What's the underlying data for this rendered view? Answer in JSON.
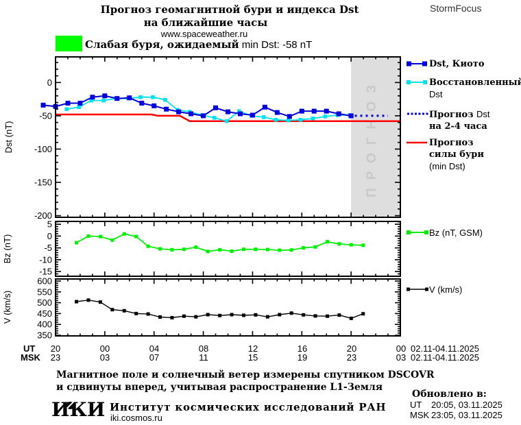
{
  "header": {
    "title_line1": "Прогноз геомагнитной бури и индекса Dst",
    "title_line2": "на ближайшие часы",
    "website": "www.spaceweather.ru",
    "brand": "StormFocus"
  },
  "storm_banner": {
    "level_text": "Слабая буря, ожидаемый",
    "detail_text": " min Dst: -58 nT",
    "color": "#00ff00"
  },
  "forecast_overlay": {
    "label": "ПРОГНОЗ",
    "bg": "#dedede",
    "text_color": "#c9c9c9"
  },
  "xaxis": {
    "ut_label": "UT",
    "msk_label": "MSK",
    "ut_ticks": [
      "20",
      "00",
      "04",
      "08",
      "12",
      "16",
      "20",
      "00"
    ],
    "msk_ticks": [
      "23",
      "03",
      "07",
      "11",
      "15",
      "19",
      "23",
      "03"
    ],
    "date_range_ut": "02.11-04.11.2025",
    "date_range_msk": "02.11-04.11.2025"
  },
  "legends": {
    "dst": [
      {
        "line1": "Dst, Киото",
        "color": "#0000dd",
        "style": "squares"
      },
      {
        "line1": "Восстановленный",
        "line2": "Dst",
        "color": "#00e0ee",
        "style": "squares"
      },
      {
        "line1_cyr": "Прогноз ",
        "line1_lat": "Dst",
        "line2": "на 2-4 часа",
        "color": "#0000dd",
        "style": "dotted"
      },
      {
        "line1": "Прогноз",
        "line2": "силы бури",
        "line3": "(min Dst)",
        "color": "#ff0000",
        "style": "line"
      }
    ],
    "bz": {
      "label": "Bz (nT, GSM)",
      "color": "#00ee00"
    },
    "v": {
      "label": "V (km/s)",
      "color": "#000000"
    }
  },
  "footer": {
    "note_line1": "Магнитное поле и солнечный ветер измерены спутником DSCOVR",
    "note_line2": "и сдвинуты вперед, учитывая распространение L1-Земля",
    "iki_logo": "ИКИ",
    "institute": "Институт космических исследований РАН",
    "site": "iki.cosmos.ru",
    "updated_header": "Обновлено в:",
    "updated_ut_label": "UT",
    "updated_ut_value": "20:05, 03.11.2025",
    "updated_msk_label": "MSK",
    "updated_msk_value": "23:05, 03.11.2025"
  },
  "chart_data": [
    {
      "id": "dst",
      "type": "line",
      "ylabel": "Dst (nT)",
      "ylim": [
        -202.5,
        38.5
      ],
      "yticks": [
        0,
        -50,
        -100,
        -150,
        -200
      ],
      "ytick_labels": [
        "0",
        "-50",
        "-100",
        "-150",
        "-200"
      ],
      "yminor": 10,
      "xlim": [
        20,
        48
      ],
      "xmajor": 4,
      "xminor": 1,
      "forecast_region": {
        "x_start": 44,
        "x_end": 48
      },
      "series": [
        {
          "name": "Прогноз силы бури (min Dst)",
          "color": "#ff0000",
          "lw": 2.5,
          "ms": 0,
          "x": [
            20,
            27.8,
            28.3,
            30.1,
            30.9,
            48
          ],
          "values": [
            -48,
            -48,
            -50,
            -50,
            -58,
            -58
          ]
        },
        {
          "name": "Восстановленный Dst",
          "color": "#00e0ee",
          "lw": 1.8,
          "ms": 5.5,
          "x": [
            20.9,
            21.9,
            22.9,
            23.9,
            24.9,
            25.9,
            26.9,
            27.9,
            28.9,
            29.9,
            30.9,
            31.9,
            32.9,
            33.9,
            34.9,
            35.9,
            36.9,
            37.9,
            38.9,
            39.9,
            40.9,
            41.9,
            42.9,
            43.9
          ],
          "values": [
            -40,
            -37,
            -27,
            -27,
            -24,
            -24,
            -22,
            -22,
            -26,
            -41,
            -44,
            -49,
            -53,
            -58,
            -43,
            -50,
            -52,
            -56,
            -57,
            -56,
            -54,
            -51,
            -49,
            -49
          ]
        },
        {
          "name": "Dst, Киото",
          "color": "#0000dd",
          "lw": 2,
          "ms": 7,
          "x": [
            19,
            20,
            21,
            22,
            23,
            24,
            25,
            26,
            27,
            28,
            29,
            30,
            31,
            32,
            33,
            34,
            35,
            36,
            37,
            38,
            39,
            40,
            41,
            42,
            43,
            44
          ],
          "values": [
            -34,
            -36,
            -31,
            -31,
            -22,
            -20,
            -24,
            -23,
            -31,
            -35,
            -40,
            -44,
            -47,
            -50,
            -38,
            -44,
            -47,
            -49,
            -37,
            -45,
            -51,
            -43,
            -43,
            -43,
            -47,
            -50
          ]
        },
        {
          "name": "Прогноз Dst на 2-4 часа",
          "color": "#0000dd",
          "lw": 3,
          "ms": 0,
          "dash": "3 5",
          "x": [
            44.3,
            47.0
          ],
          "values": [
            -50,
            -50
          ]
        }
      ]
    },
    {
      "id": "bz",
      "type": "line",
      "ylabel": "Bz (nT)",
      "ylim": [
        -17,
        6.2
      ],
      "yticks": [
        5,
        0,
        -5,
        -10,
        -15
      ],
      "ytick_labels": [
        "5",
        "0",
        "-5",
        "-10",
        "-15"
      ],
      "yminor": 1,
      "xlim": [
        20,
        48
      ],
      "xmajor": 4,
      "xminor": 1,
      "series": [
        {
          "name": "Bz (nT, GSM)",
          "color": "#00ee00",
          "lw": 1.8,
          "ms": 5,
          "x": [
            21.7,
            22.67,
            23.64,
            24.61,
            25.58,
            26.55,
            27.52,
            28.49,
            29.46,
            30.43,
            31.4,
            32.37,
            33.34,
            34.31,
            35.28,
            36.25,
            37.22,
            38.19,
            39.16,
            40.13,
            41.1,
            42.07,
            43.04,
            44.01,
            44.98
          ],
          "values": [
            -2.8,
            0,
            -0.2,
            -1.7,
            0.9,
            -0.2,
            -4.3,
            -5.4,
            -5.8,
            -5.6,
            -4.7,
            -6.5,
            -5.8,
            -6.4,
            -5.6,
            -5.6,
            -5.7,
            -6.0,
            -5.9,
            -5.0,
            -4.6,
            -2.4,
            -3.3,
            -3.7,
            -3.9
          ]
        }
      ]
    },
    {
      "id": "v",
      "type": "line",
      "ylabel": "V (km/s)",
      "ylim": [
        347,
        609.5
      ],
      "yticks": [
        600,
        550,
        500,
        450,
        400,
        350
      ],
      "ytick_labels": [
        "600",
        "550",
        "500",
        "450",
        "400",
        "350"
      ],
      "yminor": 10,
      "xlim": [
        20,
        48
      ],
      "xmajor": 4,
      "xminor": 1,
      "series": [
        {
          "name": "V (km/s)",
          "color": "#000000",
          "lw": 1.4,
          "ms": 5,
          "x": [
            21.7,
            22.67,
            23.64,
            24.61,
            25.58,
            26.55,
            27.52,
            28.49,
            29.46,
            30.43,
            31.4,
            32.37,
            33.34,
            34.31,
            35.28,
            36.25,
            37.22,
            38.19,
            39.16,
            40.13,
            41.1,
            42.07,
            43.04,
            44.01,
            44.98
          ],
          "values": [
            505,
            512,
            503,
            468,
            463,
            450,
            448,
            434,
            431,
            438,
            435,
            445,
            441,
            445,
            442,
            444,
            435,
            445,
            452,
            444,
            439,
            438,
            443,
            428,
            449
          ]
        }
      ]
    }
  ]
}
